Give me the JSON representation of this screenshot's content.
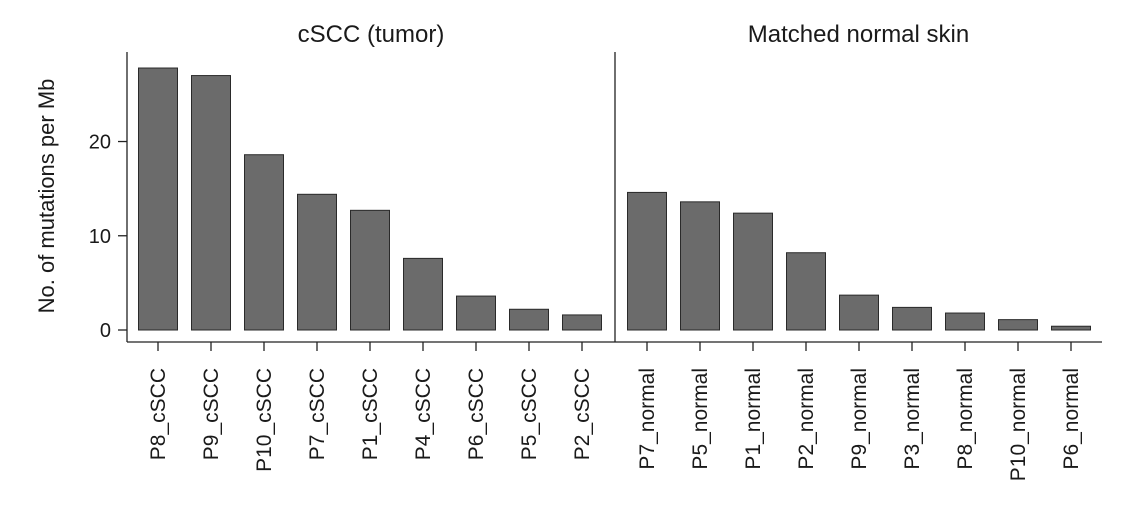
{
  "chart_data": [
    {
      "type": "bar",
      "title": "cSCC (tumor)",
      "ylabel": "No. of mutations per Mb",
      "ylim": [
        0,
        29.5
      ],
      "yticks": [
        0,
        10,
        20
      ],
      "categories": [
        "P8_cSCC",
        "P9_cSCC",
        "P10_cSCC",
        "P7_cSCC",
        "P1_cSCC",
        "P4_cSCC",
        "P6_cSCC",
        "P5_cSCC",
        "P2_cSCC"
      ],
      "values": [
        27.8,
        27.0,
        18.6,
        14.4,
        12.7,
        7.6,
        3.6,
        2.2,
        1.6
      ],
      "bar_color": "#6b6b6b"
    },
    {
      "type": "bar",
      "title": "Matched normal skin",
      "ylim": [
        0,
        29.5
      ],
      "categories": [
        "P7_normal",
        "P5_normal",
        "P1_normal",
        "P2_normal",
        "P9_normal",
        "P3_normal",
        "P8_normal",
        "P10_normal",
        "P6_normal"
      ],
      "values": [
        14.6,
        13.6,
        12.4,
        8.2,
        3.7,
        2.4,
        1.8,
        1.1,
        0.4
      ],
      "bar_color": "#6b6b6b"
    }
  ]
}
